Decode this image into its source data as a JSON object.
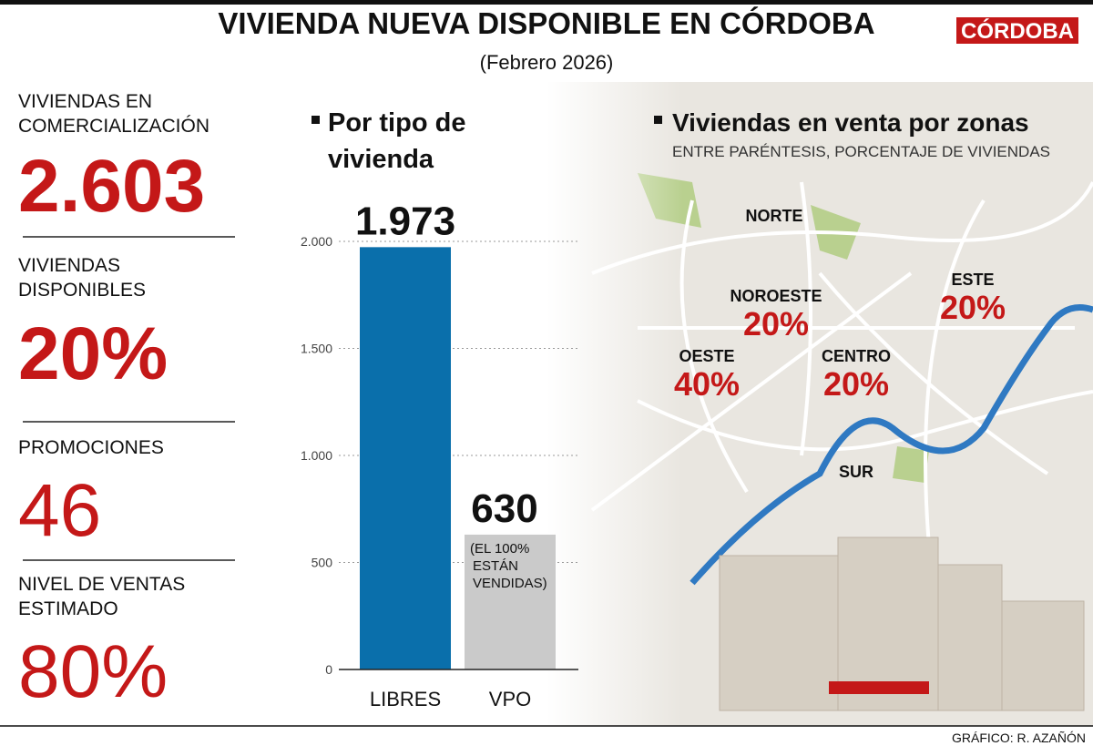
{
  "header": {
    "title": "VIVIENDA NUEVA DISPONIBLE EN CÓRDOBA",
    "subtitle": "(Febrero 2026)",
    "brand": "CÓRDOBA"
  },
  "stats": [
    {
      "label": [
        "VIVIENDAS EN",
        "COMERCIALIZACIÓN"
      ],
      "value": "2.603"
    },
    {
      "label": [
        "VIVIENDAS",
        "DISPONIBLES"
      ],
      "value": "20%"
    },
    {
      "label": [
        "PROMOCIONES"
      ],
      "value": "46"
    },
    {
      "label": [
        "NIVEL DE VENTAS",
        "ESTIMADO"
      ],
      "value": "80%"
    }
  ],
  "chart_data": {
    "type": "bar",
    "title": [
      "Por tipo de",
      "vivienda"
    ],
    "categories": [
      "LIBRES",
      "VPO"
    ],
    "values": [
      1973,
      630
    ],
    "value_labels": [
      "1.973",
      "630"
    ],
    "colors": [
      "#0a6fab",
      "#cacaca"
    ],
    "annotation": [
      "(EL 100%",
      "ESTÁN",
      "VENDIDAS)"
    ],
    "ylim": [
      0,
      2000
    ],
    "yticks": [
      0,
      500,
      {
        "value": 1000,
        "label": "1.000"
      },
      {
        "value": 1500,
        "label": "1.500"
      },
      {
        "value": 2000,
        "label": "2.000"
      }
    ],
    "grid": true
  },
  "map": {
    "title": "Viviendas en venta por zonas",
    "subtitle": "ENTRE PARÉNTESIS, PORCENTAJE DE VIVIENDAS",
    "zones": [
      {
        "name": "NORTE"
      },
      {
        "name": "NOROESTE",
        "share": "20%"
      },
      {
        "name": "ESTE",
        "share": "20%"
      },
      {
        "name": "OESTE",
        "share": "40%"
      },
      {
        "name": "CENTRO",
        "share": "20%"
      },
      {
        "name": "SUR"
      }
    ]
  },
  "credit": "GRÁFICO: R. AZAÑÓN"
}
